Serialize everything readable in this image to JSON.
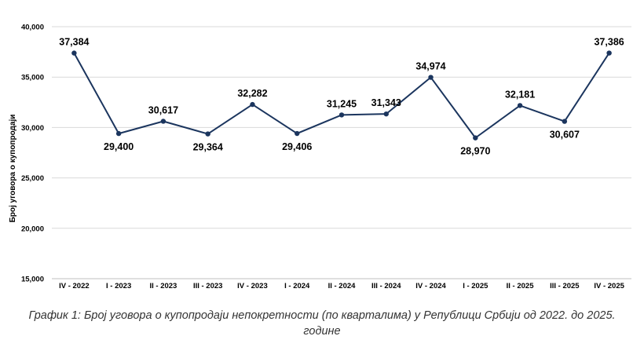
{
  "chart_data": {
    "type": "line",
    "categories": [
      "IV - 2022",
      "I - 2023",
      "II - 2023",
      "III - 2023",
      "IV - 2023",
      "I - 2024",
      "II - 2024",
      "III - 2024",
      "IV - 2024",
      "I - 2025",
      "II - 2025",
      "III - 2025",
      "IV - 2025"
    ],
    "series": [
      {
        "values": [
          37384,
          29400,
          30617,
          29364,
          32282,
          29406,
          31245,
          31343,
          34974,
          28970,
          32181,
          30607,
          37386
        ],
        "labels": [
          "37,384",
          "29,400",
          "30,617",
          "29,364",
          "32,282",
          "29,406",
          "31,245",
          "31,343",
          "34,974",
          "28,970",
          "32,181",
          "30,607",
          "37,386"
        ],
        "label_positions": [
          "above",
          "below",
          "above",
          "below",
          "above",
          "below",
          "above",
          "above",
          "above",
          "below",
          "above",
          "below",
          "above"
        ],
        "color": "#1b355e"
      }
    ],
    "ylabel": "Број уговора о купопродаји",
    "ylim": [
      15000,
      40000
    ],
    "yticks": [
      15000,
      20000,
      25000,
      30000,
      35000,
      40000
    ],
    "ytick_labels": [
      "15,000",
      "20,000",
      "25,000",
      "30,000",
      "35,000",
      "40,000"
    ],
    "grid": true,
    "legend": "none"
  },
  "caption": "График 1: Број уговора о купопродаји непокретности (по кварталима) у Републици Србији од 2022. до 2025. године",
  "colors": {
    "line": "#1b355e",
    "grid": "#d9d9d9",
    "text": "#000000"
  }
}
